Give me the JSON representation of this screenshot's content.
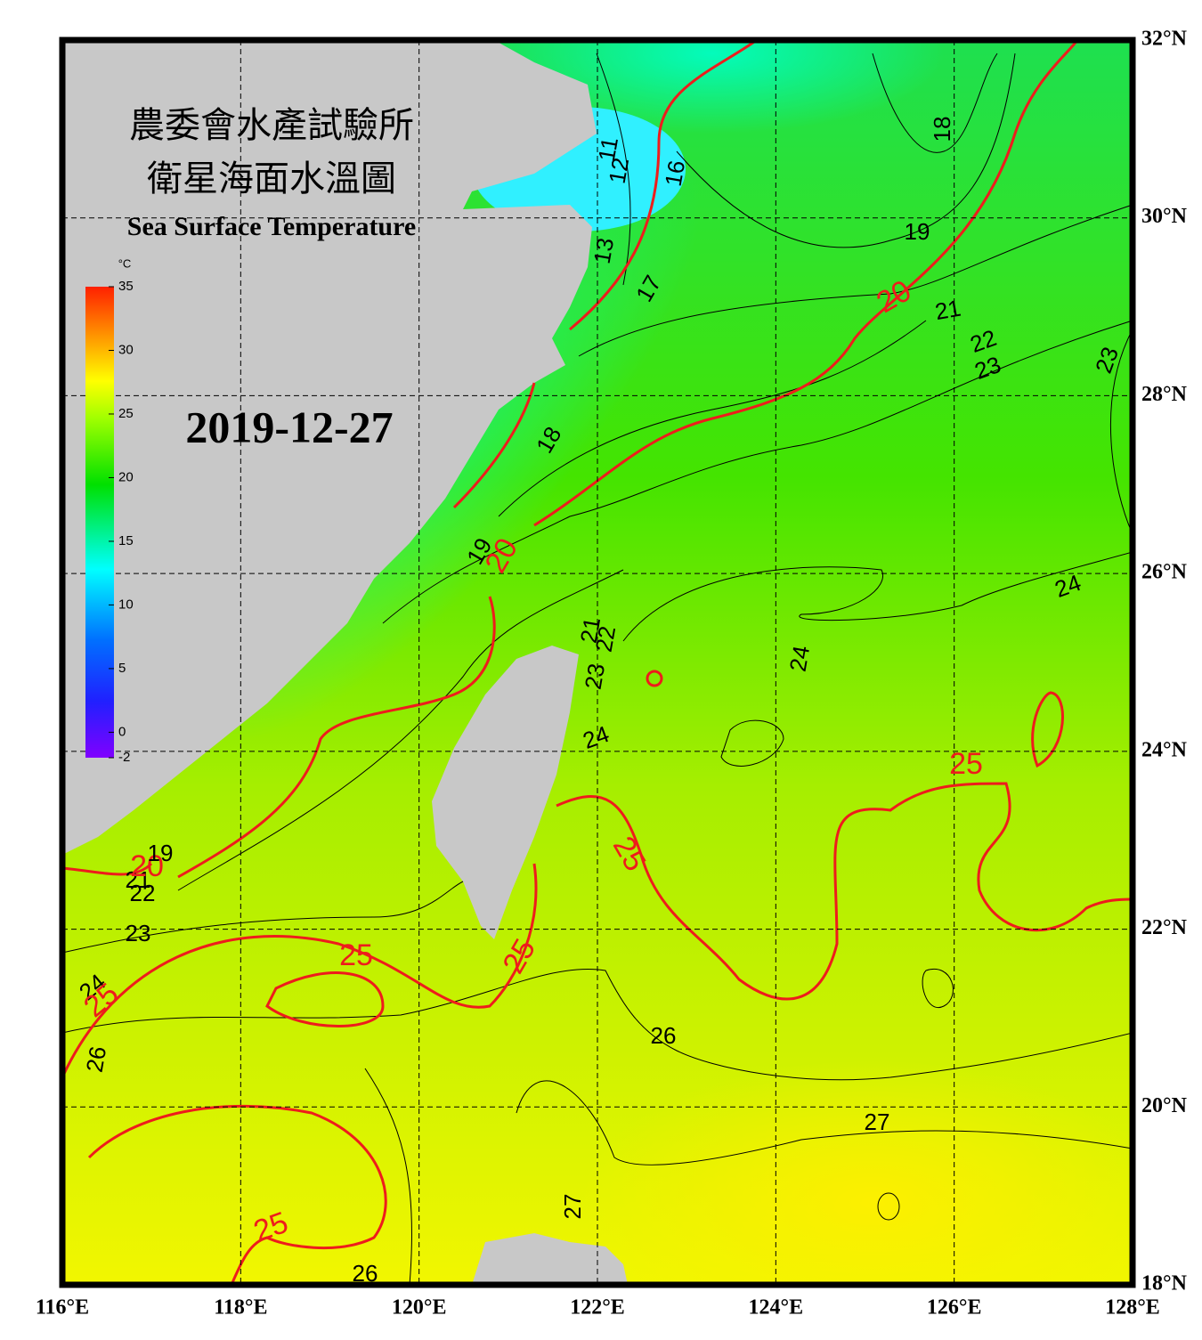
{
  "header": {
    "title_lines": [
      "農委會水產試驗所",
      "衛星海面水溫圖"
    ],
    "subtitle": "Sea Surface Temperature",
    "date": "2019-12-27"
  },
  "colorbar": {
    "unit": "°C",
    "lim": [
      -2,
      35
    ],
    "ticks": [
      35,
      30,
      25,
      20,
      15,
      10,
      5,
      0,
      -2
    ]
  },
  "map": {
    "xlim": [
      116,
      128
    ],
    "ylim": [
      18,
      32
    ],
    "xticks": [
      {
        "value": 116,
        "label": "116°E"
      },
      {
        "value": 118,
        "label": "118°E"
      },
      {
        "value": 120,
        "label": "120°E"
      },
      {
        "value": 122,
        "label": "122°E"
      },
      {
        "value": 124,
        "label": "124°E"
      },
      {
        "value": 126,
        "label": "126°E"
      },
      {
        "value": 128,
        "label": "128°E"
      }
    ],
    "yticks": [
      {
        "value": 18,
        "label": "18°N"
      },
      {
        "value": 20,
        "label": "20°N"
      },
      {
        "value": 22,
        "label": "22°N"
      },
      {
        "value": 24,
        "label": "24°N"
      },
      {
        "value": 26,
        "label": "26°N"
      },
      {
        "value": 28,
        "label": "28°N"
      },
      {
        "value": 30,
        "label": "30°N"
      },
      {
        "value": 32,
        "label": "32°N"
      }
    ],
    "grid": true
  },
  "contour_labels": [
    "11",
    "12",
    "13",
    "16",
    "17",
    "18",
    "19",
    "20",
    "21",
    "22",
    "23",
    "23",
    "18",
    "19",
    "20",
    "21",
    "22",
    "23",
    "24",
    "24",
    "24",
    "25",
    "25",
    "25",
    "25",
    "23",
    "22",
    "21",
    "20",
    "19",
    "24",
    "25",
    "26",
    "26",
    "27",
    "27",
    "25",
    "26"
  ]
}
